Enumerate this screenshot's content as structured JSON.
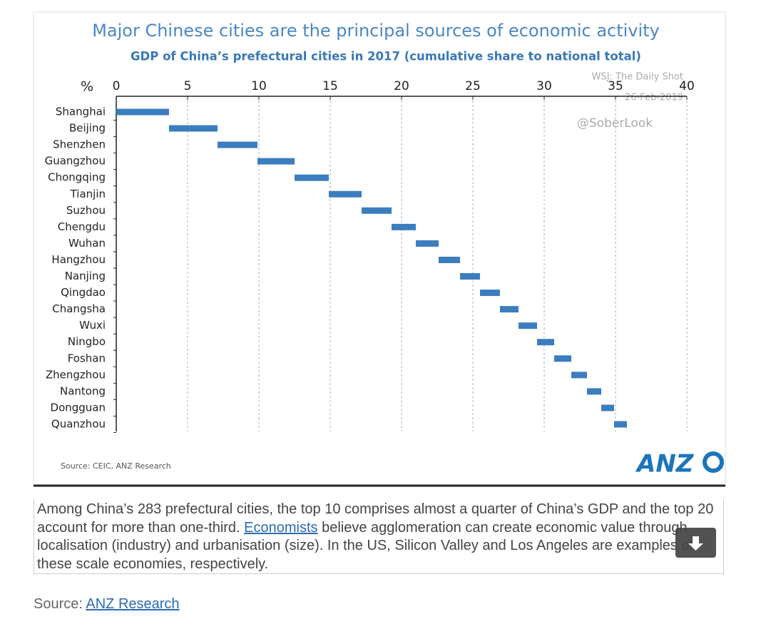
{
  "chart_data": {
    "type": "floating_bar",
    "title": "Major Chinese cities are the principal sources of economic activity",
    "subtitle": "GDP of China’s prefectural cities in 2017 (cumulative share to national total)",
    "x_label": "%",
    "categories": [
      "Shanghai",
      "Beijing",
      "Shenzhen",
      "Guangzhou",
      "Chongqing",
      "Tianjin",
      "Suzhou",
      "Chengdu",
      "Wuhan",
      "Hangzhou",
      "Nanjing",
      "Qingdao",
      "Changsha",
      "Wuxi",
      "Ningbo",
      "Foshan",
      "Zhengzhou",
      "Nantong",
      "Dongguan",
      "Quanzhou"
    ],
    "values": [
      3.7,
      3.4,
      2.8,
      2.6,
      2.4,
      2.3,
      2.1,
      1.7,
      1.6,
      1.5,
      1.4,
      1.4,
      1.3,
      1.3,
      1.2,
      1.2,
      1.1,
      1.0,
      0.9,
      0.9
    ],
    "color": "#3c7dbf",
    "xlim": [
      0,
      40
    ],
    "xticks": [
      0,
      5,
      10,
      15,
      20,
      25,
      30,
      35,
      40
    ],
    "grid": true,
    "source": "Source: CEIC, ANZ Research",
    "watermarks": [
      "WSJ: The Daily Shot",
      "26-Feb-2019",
      "@SoberLook"
    ],
    "logo": "ANZ"
  },
  "caption": {
    "before": "Among China’s 283 prefectural cities, the top 10 comprises almost a quarter of China’s GDP and the top 20 account for more than one-third. ",
    "link": "Economists",
    "after": " believe agglomeration can create economic value through localisation (industry) and urbanisation (size). In the US, Silicon Valley and Los Angeles are examples of these scale economies, respectively."
  },
  "source": {
    "label": "Source:",
    "link": "ANZ Research"
  }
}
